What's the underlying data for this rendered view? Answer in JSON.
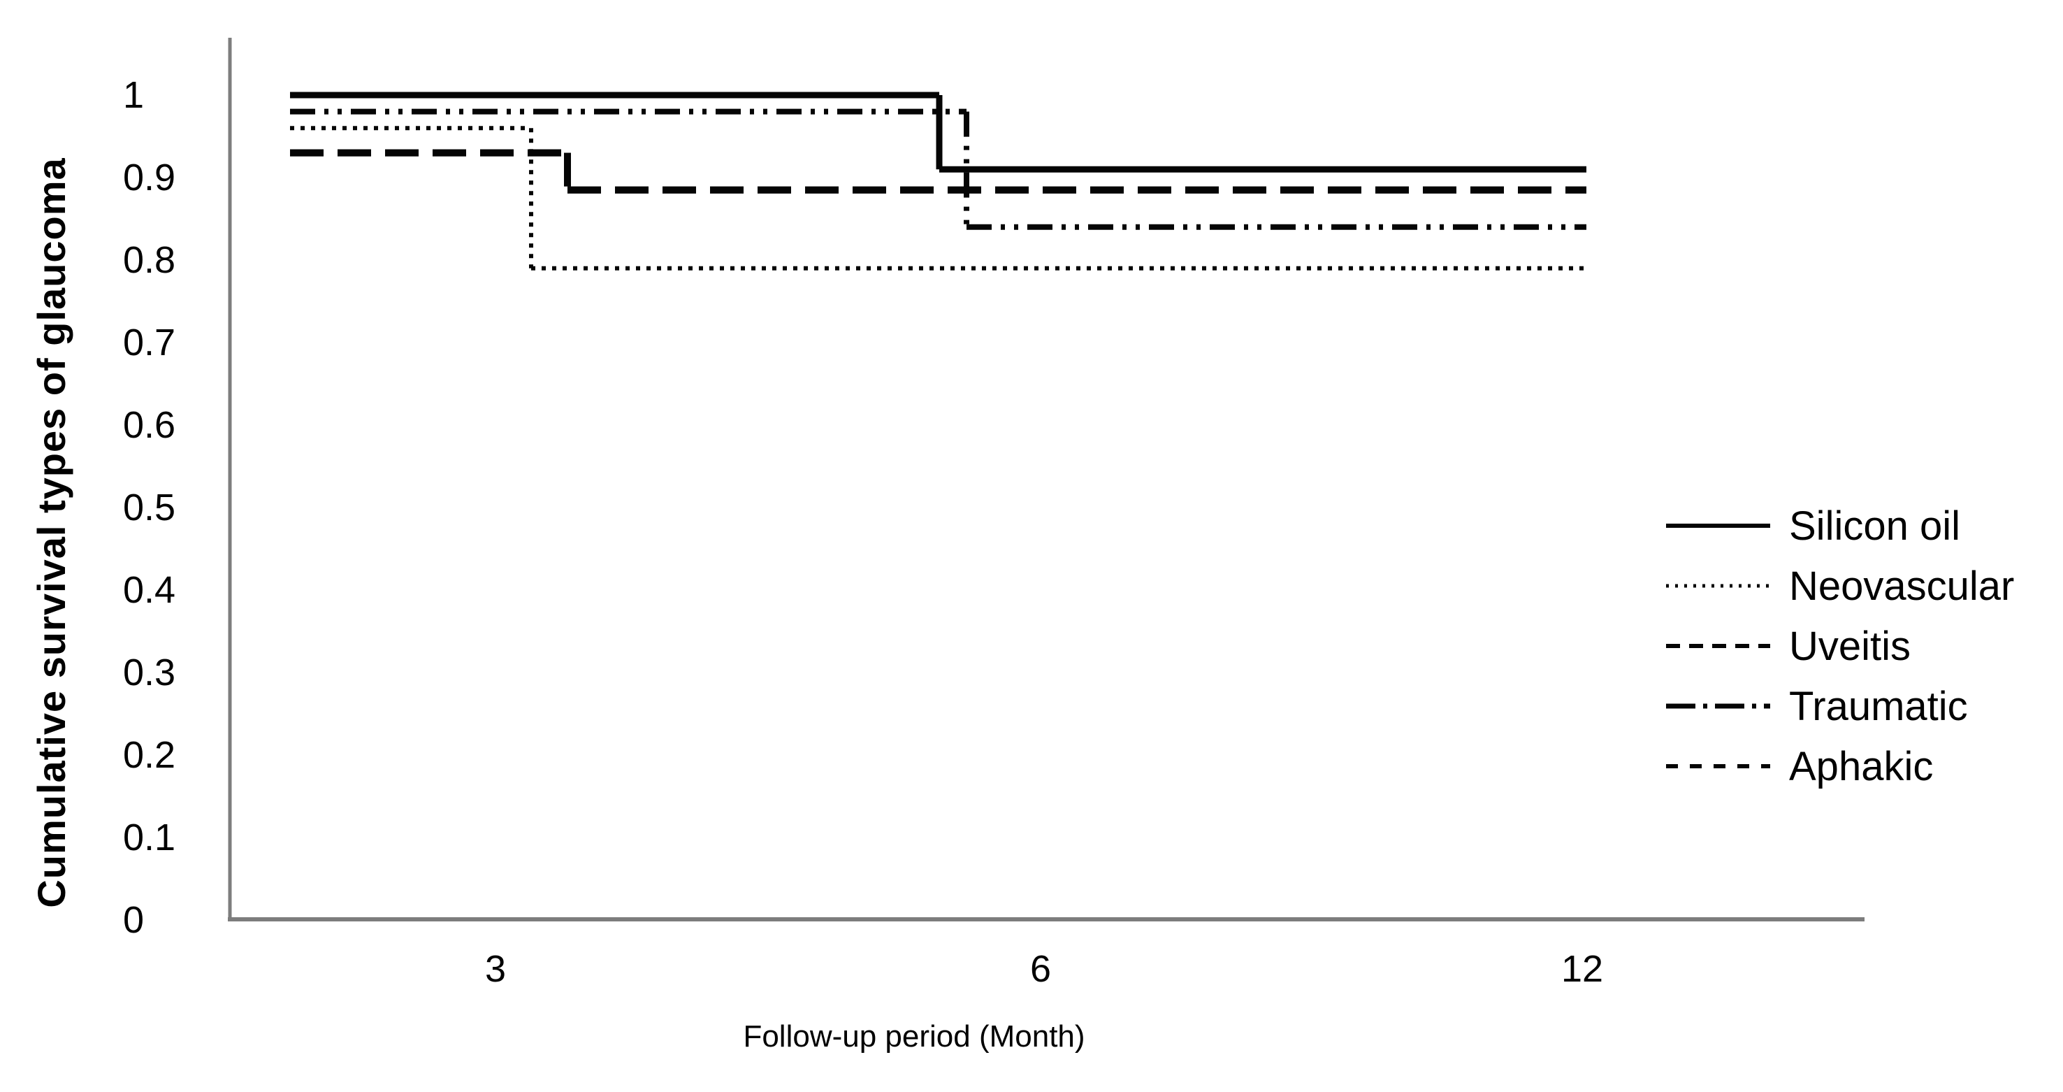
{
  "chart_data": {
    "type": "line",
    "subtype": "kaplan-meier-step-survival",
    "title": "",
    "xlabel": "Follow-up period (Month)",
    "ylabel": "Cumulative survival types of glaucoma",
    "x_tick_labels": [
      "3",
      "6",
      "12"
    ],
    "y_tick_labels": [
      "1",
      "0.9",
      "0.8",
      "0.7",
      "0.6",
      "0.5",
      "0.4",
      "0.3",
      "0.2",
      "0.1",
      "0"
    ],
    "y_tick_values": [
      1,
      0.9,
      0.8,
      0.7,
      0.6,
      0.5,
      0.4,
      0.3,
      0.2,
      0.1,
      0
    ],
    "ylim": [
      0,
      1
    ],
    "grid": false,
    "legend_position": "middle-right",
    "line_color": "#050505",
    "axis_color": "#7d7d7d",
    "series": [
      {
        "name": "Silicon oil",
        "line_style": "solid",
        "start_survival": 1.0,
        "end_survival": 0.91,
        "drop_frac": 0.501,
        "drop_near_month": "5.5"
      },
      {
        "name": "Neovascular",
        "line_style": "dotted",
        "start_survival": 0.96,
        "end_survival": 0.79,
        "drop_frac": 0.186,
        "drop_near_month": "3"
      },
      {
        "name": "Uveitis",
        "line_style": "dashed",
        "start_survival": 0.93,
        "end_survival": 0.885,
        "drop_frac": 0.214,
        "drop_near_month": "3.5"
      },
      {
        "name": "Traumatic",
        "line_style": "dash-dot-dot",
        "start_survival": 0.98,
        "end_survival": 0.84,
        "drop_frac": 0.522,
        "drop_near_month": "6"
      },
      {
        "name": "Aphakic",
        "line_style": "dashed",
        "start_survival": 0.93,
        "end_survival": 0.885,
        "drop_frac": 0.214,
        "drop_near_month": "3.5",
        "overlaps": "Uveitis"
      }
    ]
  }
}
